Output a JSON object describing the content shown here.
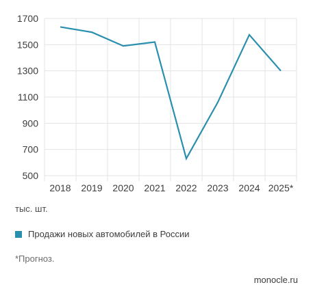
{
  "chart_data": {
    "type": "line",
    "categories": [
      "2018",
      "2019",
      "2020",
      "2021",
      "2022",
      "2023",
      "2024",
      "2025*"
    ],
    "series": [
      {
        "name": "Продажи новых автомобилей в России",
        "color": "#2a8fae",
        "values": [
          1635,
          1595,
          1490,
          1520,
          630,
          1060,
          1575,
          1300
        ]
      }
    ],
    "yticks": [
      500,
      700,
      900,
      1100,
      1300,
      1500,
      1700
    ],
    "ylim": [
      500,
      1700
    ],
    "grid": true,
    "unit_label": "тыс. шт.",
    "legend_position": "bottom-left"
  },
  "footnote": "*Прогноз.",
  "source": "monocle.ru",
  "colors": {
    "line": "#2a8fae",
    "grid": "#e3e3e3",
    "text": "#3c3c3c"
  }
}
